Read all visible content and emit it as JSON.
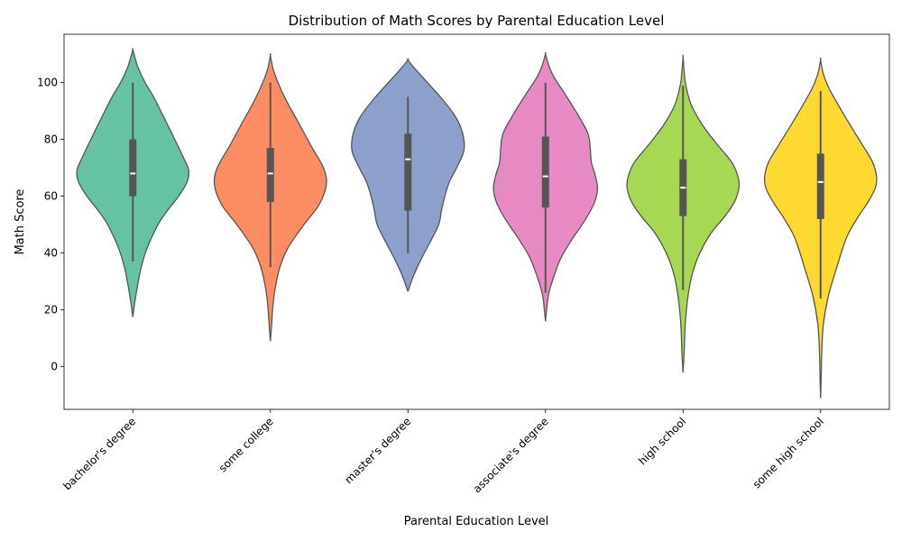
{
  "chart_data": {
    "type": "violin",
    "title": "Distribution of Math Scores by Parental Education Level",
    "xlabel": "Parental Education Level",
    "ylabel": "Math Score",
    "ylim": [
      -15,
      117
    ],
    "yticks": [
      0,
      20,
      40,
      60,
      80,
      100
    ],
    "grid": false,
    "categories": [
      "bachelor's degree",
      "some college",
      "master's degree",
      "associate's degree",
      "high school",
      "some high school"
    ],
    "colors": [
      "#66c2a5",
      "#fc8d62",
      "#8da0cb",
      "#e78ac3",
      "#a6d854",
      "#ffd92f"
    ],
    "series": [
      {
        "category": "bachelor's degree",
        "median": 68,
        "q1": 60,
        "q3": 80,
        "whisker_low": 37,
        "whisker_high": 100,
        "density": [
          [
            17.5,
            0
          ],
          [
            22,
            0.03
          ],
          [
            28,
            0.08
          ],
          [
            35,
            0.15
          ],
          [
            42,
            0.26
          ],
          [
            50,
            0.45
          ],
          [
            55,
            0.62
          ],
          [
            60,
            0.82
          ],
          [
            65,
            0.97
          ],
          [
            69,
            1.0
          ],
          [
            73,
            0.92
          ],
          [
            80,
            0.75
          ],
          [
            88,
            0.55
          ],
          [
            95,
            0.37
          ],
          [
            100,
            0.22
          ],
          [
            105,
            0.1
          ],
          [
            108,
            0.05
          ],
          [
            111.5,
            0
          ]
        ]
      },
      {
        "category": "some college",
        "median": 68,
        "q1": 58,
        "q3": 77,
        "whisker_low": 35,
        "whisker_high": 100,
        "density": [
          [
            9,
            0
          ],
          [
            14,
            0.02
          ],
          [
            20,
            0.04
          ],
          [
            27,
            0.08
          ],
          [
            35,
            0.17
          ],
          [
            42,
            0.32
          ],
          [
            50,
            0.6
          ],
          [
            57,
            0.87
          ],
          [
            64,
            1.0
          ],
          [
            70,
            0.95
          ],
          [
            78,
            0.72
          ],
          [
            86,
            0.5
          ],
          [
            92,
            0.33
          ],
          [
            98,
            0.18
          ],
          [
            104,
            0.06
          ],
          [
            109.5,
            0
          ]
        ]
      },
      {
        "category": "master's degree",
        "median": 73,
        "q1": 55,
        "q3": 82,
        "whisker_low": 40,
        "whisker_high": 95,
        "density": [
          [
            26.5,
            0
          ],
          [
            32,
            0.1
          ],
          [
            38,
            0.24
          ],
          [
            44,
            0.4
          ],
          [
            50,
            0.55
          ],
          [
            55,
            0.6
          ],
          [
            60,
            0.66
          ],
          [
            65,
            0.74
          ],
          [
            70,
            0.87
          ],
          [
            76,
            1.0
          ],
          [
            82,
            0.98
          ],
          [
            88,
            0.85
          ],
          [
            94,
            0.62
          ],
          [
            100,
            0.35
          ],
          [
            105,
            0.12
          ],
          [
            108,
            0
          ]
        ]
      },
      {
        "category": "associate's degree",
        "median": 67,
        "q1": 56,
        "q3": 81,
        "whisker_low": 26,
        "whisker_high": 100,
        "density": [
          [
            16,
            0
          ],
          [
            20,
            0.02
          ],
          [
            25,
            0.05
          ],
          [
            30,
            0.12
          ],
          [
            38,
            0.27
          ],
          [
            45,
            0.48
          ],
          [
            52,
            0.72
          ],
          [
            58,
            0.88
          ],
          [
            63,
            0.93
          ],
          [
            68,
            0.88
          ],
          [
            72,
            0.82
          ],
          [
            77,
            0.8
          ],
          [
            82,
            0.76
          ],
          [
            88,
            0.6
          ],
          [
            95,
            0.38
          ],
          [
            102,
            0.15
          ],
          [
            106,
            0.06
          ],
          [
            110,
            0
          ]
        ]
      },
      {
        "category": "high school",
        "median": 63,
        "q1": 53,
        "q3": 73,
        "whisker_low": 27,
        "whisker_high": 99,
        "density": [
          [
            -2,
            0
          ],
          [
            5,
            0.02
          ],
          [
            15,
            0.04
          ],
          [
            25,
            0.09
          ],
          [
            33,
            0.17
          ],
          [
            40,
            0.3
          ],
          [
            47,
            0.5
          ],
          [
            53,
            0.75
          ],
          [
            58,
            0.92
          ],
          [
            63,
            1.0
          ],
          [
            67,
            0.98
          ],
          [
            72,
            0.87
          ],
          [
            78,
            0.62
          ],
          [
            85,
            0.35
          ],
          [
            92,
            0.15
          ],
          [
            99,
            0.05
          ],
          [
            104,
            0.02
          ],
          [
            109,
            0
          ]
        ]
      },
      {
        "category": "some high school",
        "median": 65,
        "q1": 52,
        "q3": 75,
        "whisker_low": 24,
        "whisker_high": 97,
        "density": [
          [
            -11,
            0
          ],
          [
            -4,
            0.01
          ],
          [
            5,
            0.02
          ],
          [
            15,
            0.05
          ],
          [
            25,
            0.14
          ],
          [
            35,
            0.29
          ],
          [
            42,
            0.4
          ],
          [
            47,
            0.5
          ],
          [
            53,
            0.68
          ],
          [
            58,
            0.85
          ],
          [
            63,
            0.98
          ],
          [
            67,
            1.0
          ],
          [
            72,
            0.93
          ],
          [
            78,
            0.75
          ],
          [
            85,
            0.53
          ],
          [
            92,
            0.32
          ],
          [
            98,
            0.15
          ],
          [
            103,
            0.05
          ],
          [
            108,
            0
          ]
        ]
      }
    ]
  }
}
